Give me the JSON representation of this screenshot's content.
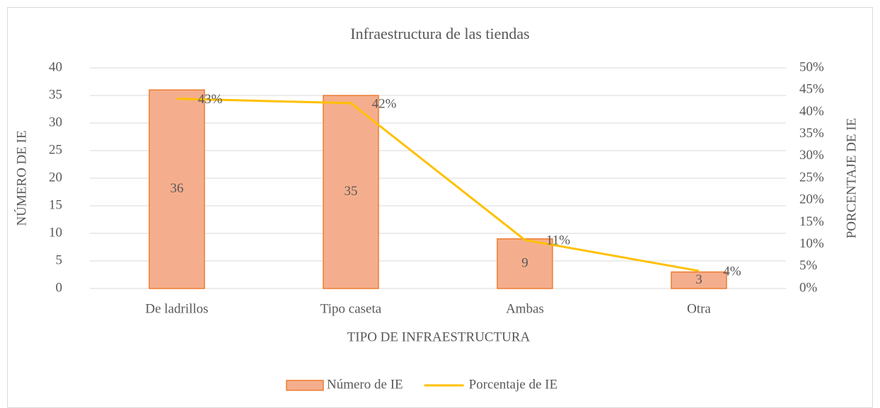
{
  "chart_data": {
    "type": "bar",
    "title": "Infraestructura de las tiendas",
    "x_label": "TIPO DE INFRAESTRUCTURA",
    "y_label": "NÚMERO DE IE",
    "y2_label": "PORCENTAJE DE IE",
    "categories": [
      "De ladrillos",
      "Tipo caseta",
      "Ambas",
      "Otra"
    ],
    "series": [
      {
        "name": "Número de IE",
        "type": "bar",
        "color": "#f5ae8d",
        "edge_color": "#ed7d31",
        "values": [
          36,
          35,
          9,
          3
        ]
      },
      {
        "name": "Porcentaje de IE",
        "type": "line",
        "axis": "y2",
        "color": "#ffc000",
        "values": [
          43,
          42,
          11,
          4
        ],
        "value_labels": [
          "43%",
          "42%",
          "11%",
          "4%"
        ]
      }
    ],
    "ylim": [
      0,
      40
    ],
    "yticks": [
      0,
      5,
      10,
      15,
      20,
      25,
      30,
      35,
      40
    ],
    "y2lim": [
      0,
      50
    ],
    "y2ticks": [
      {
        "value": 0,
        "label": "0%"
      },
      {
        "value": 5,
        "label": "5%"
      },
      {
        "value": 10,
        "label": "10%"
      },
      {
        "value": 15,
        "label": "15%"
      },
      {
        "value": 20,
        "label": "20%"
      },
      {
        "value": 25,
        "label": "25%"
      },
      {
        "value": 30,
        "label": "30%"
      },
      {
        "value": 35,
        "label": "35%"
      },
      {
        "value": 40,
        "label": "40%"
      },
      {
        "value": 45,
        "label": "45%"
      },
      {
        "value": 50,
        "label": "50%"
      }
    ],
    "grid": true,
    "legend": "bottom"
  }
}
